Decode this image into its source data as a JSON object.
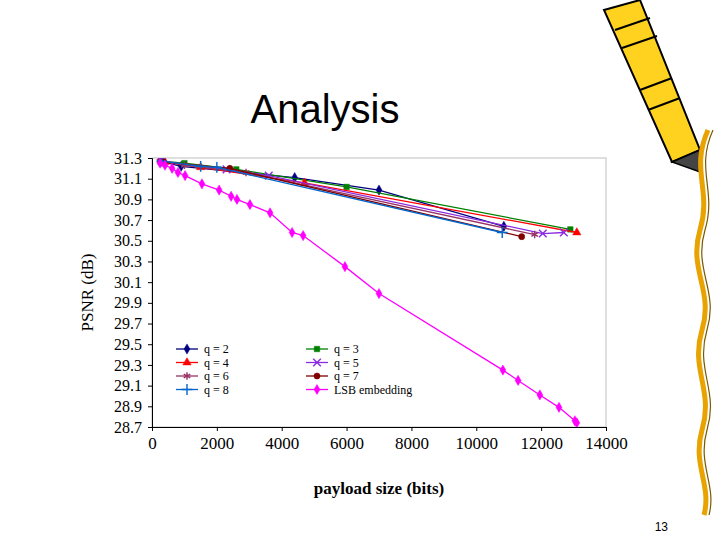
{
  "chart_data": {
    "type": "line",
    "title": "Analysis",
    "xlabel": "payload size (bits)",
    "ylabel": "PSNR (dB)",
    "xlim": [
      0,
      14000
    ],
    "xticks": [
      0,
      2000,
      4000,
      6000,
      8000,
      10000,
      12000,
      14000
    ],
    "ylim": [
      28.7,
      31.3
    ],
    "yticks": [
      28.7,
      28.9,
      29.1,
      29.3,
      29.5,
      29.7,
      29.9,
      30.1,
      30.3,
      30.5,
      30.7,
      30.9,
      31.1,
      31.3
    ],
    "grid": false,
    "legend": "lower left",
    "series": [
      {
        "name": "q = 2",
        "color": "#000080",
        "marker": "diamond",
        "x": [
          250,
          900,
          4400,
          7000,
          10850
        ],
        "values": [
          31.27,
          31.22,
          31.11,
          30.99,
          30.64
        ]
      },
      {
        "name": "q = 3",
        "color": "#008000",
        "marker": "square",
        "x": [
          300,
          1000,
          2600,
          6000,
          12900
        ],
        "values": [
          31.27,
          31.25,
          31.19,
          31.02,
          30.61
        ]
      },
      {
        "name": "q = 4",
        "color": "#ff0000",
        "marker": "triangle",
        "x": [
          400,
          1500,
          4700,
          13100
        ],
        "values": [
          31.26,
          31.21,
          31.06,
          30.58
        ]
      },
      {
        "name": "q = 5",
        "color": "#8a2be2",
        "marker": "x",
        "x": [
          300,
          2300,
          3600,
          12050,
          12700
        ],
        "values": [
          31.27,
          31.19,
          31.13,
          30.57,
          30.58
        ]
      },
      {
        "name": "q = 6",
        "color": "#993366",
        "marker": "asterisk",
        "x": [
          250,
          1000,
          2900,
          11800
        ],
        "values": [
          31.27,
          31.23,
          31.16,
          30.56
        ]
      },
      {
        "name": "q = 7",
        "color": "#800000",
        "marker": "circle",
        "x": [
          350,
          2400,
          11400
        ],
        "values": [
          31.26,
          31.2,
          30.54
        ]
      },
      {
        "name": "q = 8",
        "color": "#0066cc",
        "marker": "plus",
        "x": [
          300,
          1500,
          2000,
          10800
        ],
        "values": [
          31.27,
          31.22,
          31.21,
          30.58
        ]
      },
      {
        "name": "LSB embedding",
        "color": "#ff00ff",
        "marker": "diamond",
        "x": [
          250,
          400,
          620,
          800,
          1020,
          1540,
          2070,
          2440,
          2620,
          3020,
          3640,
          4320,
          4660,
          5950,
          7000,
          10820,
          11290,
          11960,
          12550,
          13040,
          13100
        ],
        "values": [
          31.25,
          31.23,
          31.2,
          31.16,
          31.13,
          31.05,
          30.99,
          30.93,
          30.9,
          30.85,
          30.77,
          30.58,
          30.55,
          30.25,
          29.99,
          29.25,
          29.15,
          29.01,
          28.89,
          28.76,
          28.74
        ]
      }
    ]
  },
  "slide": {
    "page_number": "13"
  }
}
